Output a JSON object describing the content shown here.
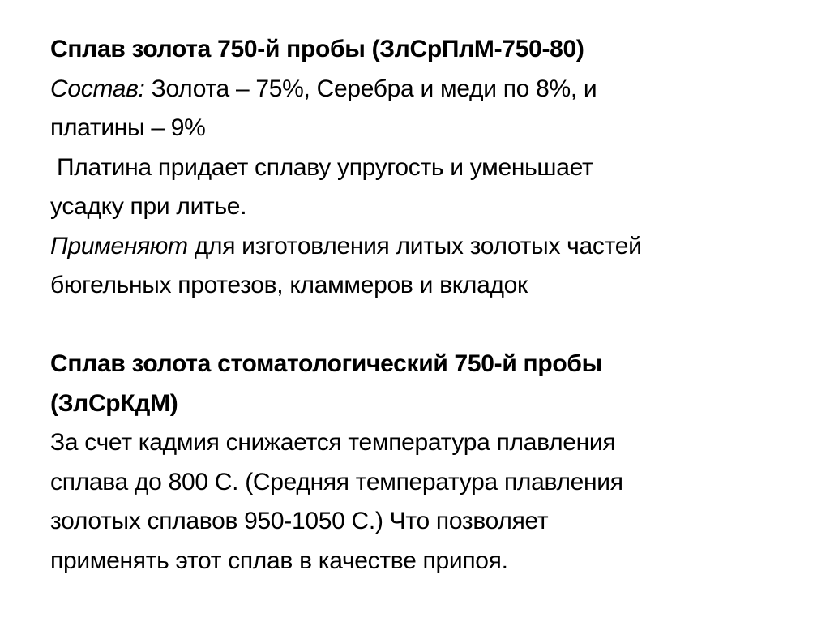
{
  "section1": {
    "title": "Сплав золота 750-й пробы (ЗлСрПлМ-750-80)",
    "composition_label": "Состав:",
    "composition_line1": " Золота – 75%, Серебра и меди по 8%, и",
    "composition_line2": "платины – 9%",
    "platinum_line1": " Платина придает сплаву упругость и уменьшает",
    "platinum_line2": "усадку при литье.",
    "usage_label": "Применяют",
    "usage_line1": " для изготовления литых золотых частей",
    "usage_line2": "бюгельных протезов, кламмеров и вкладок"
  },
  "section2": {
    "title_line1": "Сплав золота стоматологический 750-й пробы",
    "title_line2": "(ЗлСрКдМ)",
    "body_lines": [
      "За счет кадмия снижается температура плавления",
      "сплава до 800 С. (Средняя температура плавления",
      "золотых сплавов 950-1050 С.) Что позволяет",
      "применять этот сплав в качестве припоя."
    ]
  }
}
